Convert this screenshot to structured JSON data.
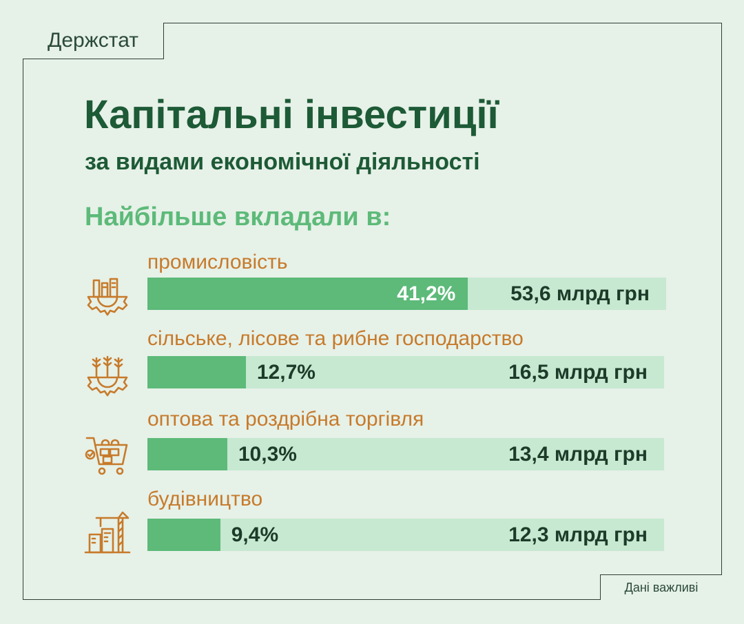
{
  "brand": "Держстат",
  "footer": "Дані важливі",
  "lead": "Найбільше вкладали в:",
  "colors": {
    "bar": "#5dba79",
    "track": "#c7e8d1",
    "label": "#c77a2a",
    "title": "#1d5a36"
  },
  "chart_data": {
    "type": "bar",
    "title": "Капітальні інвестиції",
    "subtitle": "за видами економічної діяльності",
    "unit": "%",
    "categories": [
      "промисловість",
      "сільське, лісове та рибне господарство",
      "оптова та роздрібна торгівля",
      "будівництво"
    ],
    "values": [
      41.2,
      12.7,
      10.3,
      9.4
    ],
    "value_labels": [
      "41,2%",
      "12,7%",
      "10,3%",
      "9,4%"
    ],
    "amount_labels": [
      "53,6 млрд грн",
      "16,5 млрд грн",
      "13,4 млрд грн",
      "12,3 млрд грн"
    ],
    "icons": [
      "factory-gear-icon",
      "agriculture-gear-icon",
      "shopping-cart-icon",
      "construction-crane-icon"
    ]
  }
}
